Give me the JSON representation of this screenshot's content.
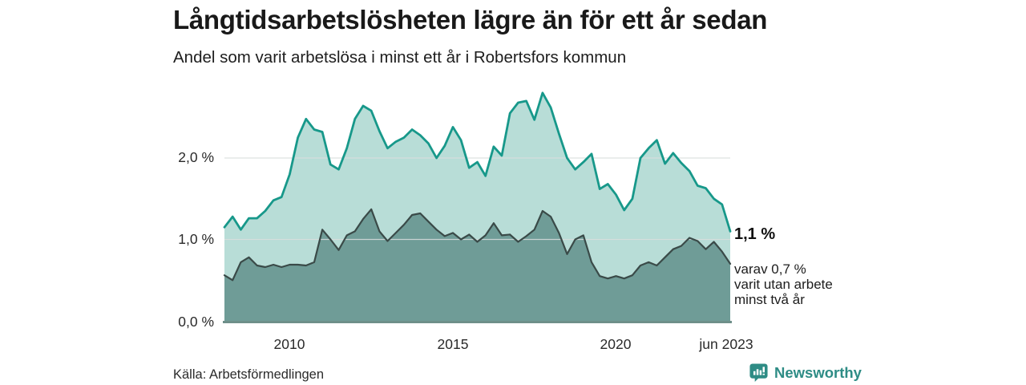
{
  "header": {
    "title": "Långtidsarbetslösheten lägre än för ett år sedan",
    "subtitle": "Andel som varit arbetslösa i minst ett år i Robertsfors kommun"
  },
  "chart_data": {
    "type": "area",
    "title": "Långtidsarbetslösheten lägre än för ett år sedan",
    "subtitle": "Andel som varit arbetslösa i minst ett år i Robertsfors kommun",
    "x_unit": "decimal year (monthly series)",
    "x_range": [
      2008.0,
      2023.5
    ],
    "ylim": [
      0,
      2.9
    ],
    "grid": "horizontal gridlines at 1,0 % and 2,0 % only",
    "legend_position": "none (direct end labels at right)",
    "y_ticks": [
      {
        "label": "0,0 %",
        "value": 0
      },
      {
        "label": "1,0 %",
        "value": 1
      },
      {
        "label": "2,0 %",
        "value": 2
      }
    ],
    "x_ticks": [
      {
        "label": "2010",
        "value": 2010
      },
      {
        "label": "2015",
        "value": 2015
      },
      {
        "label": "2020",
        "value": 2020
      },
      {
        "label": "jun 2023",
        "value": 2023.42
      }
    ],
    "x": [
      2008,
      2008.25,
      2008.5,
      2008.75,
      2009,
      2009.25,
      2009.5,
      2009.75,
      2010,
      2010.25,
      2010.5,
      2010.75,
      2011,
      2011.25,
      2011.5,
      2011.75,
      2012,
      2012.25,
      2012.5,
      2012.75,
      2013,
      2013.25,
      2013.5,
      2013.75,
      2014,
      2014.25,
      2014.5,
      2014.75,
      2015,
      2015.25,
      2015.5,
      2015.75,
      2016,
      2016.25,
      2016.5,
      2016.75,
      2017,
      2017.25,
      2017.5,
      2017.75,
      2018,
      2018.25,
      2018.5,
      2018.75,
      2019,
      2019.25,
      2019.5,
      2019.75,
      2020,
      2020.25,
      2020.5,
      2020.75,
      2021,
      2021.25,
      2021.5,
      2021.75,
      2022,
      2022.25,
      2022.5,
      2022.75,
      2023,
      2023.25,
      2023.5
    ],
    "series": [
      {
        "name": "Andel arbetslösa minst ett år",
        "line": "#17988a",
        "fill": "#b8ddd7",
        "line_width": 2.8,
        "latest_value_pct": 1.1,
        "values": [
          1.15,
          1.28,
          1.12,
          1.26,
          1.26,
          1.35,
          1.48,
          1.52,
          1.8,
          2.25,
          2.48,
          2.35,
          2.32,
          1.92,
          1.86,
          2.12,
          2.48,
          2.64,
          2.58,
          2.33,
          2.12,
          2.2,
          2.25,
          2.35,
          2.28,
          2.18,
          2.0,
          2.15,
          2.38,
          2.22,
          1.88,
          1.95,
          1.78,
          2.14,
          2.03,
          2.55,
          2.68,
          2.7,
          2.47,
          2.8,
          2.62,
          2.3,
          2.0,
          1.86,
          1.95,
          2.05,
          1.62,
          1.68,
          1.55,
          1.36,
          1.5,
          2.0,
          2.12,
          2.22,
          1.93,
          2.06,
          1.94,
          1.84,
          1.66,
          1.63,
          1.5,
          1.43,
          1.1
        ]
      },
      {
        "name": "Andel arbetslösa minst två år",
        "line": "#3a4a48",
        "fill": "#6f9c97",
        "line_width": 2.2,
        "latest_value_pct": 0.7,
        "values": [
          0.56,
          0.5,
          0.72,
          0.78,
          0.68,
          0.66,
          0.69,
          0.66,
          0.69,
          0.69,
          0.68,
          0.72,
          1.12,
          1.0,
          0.87,
          1.05,
          1.1,
          1.25,
          1.37,
          1.1,
          0.98,
          1.08,
          1.18,
          1.3,
          1.32,
          1.22,
          1.12,
          1.04,
          1.08,
          1.0,
          1.06,
          0.97,
          1.05,
          1.2,
          1.05,
          1.06,
          0.97,
          1.04,
          1.12,
          1.35,
          1.28,
          1.08,
          0.82,
          1.0,
          1.05,
          0.72,
          0.55,
          0.52,
          0.55,
          0.52,
          0.56,
          0.68,
          0.72,
          0.68,
          0.78,
          0.88,
          0.92,
          1.02,
          0.98,
          0.88,
          0.97,
          0.85,
          0.7
        ]
      }
    ],
    "annotations": {
      "primary": "1,1 %",
      "secondary": "varav 0,7 %\nvarit utan arbete\nminst två år"
    }
  },
  "colors": {
    "grid": "#d9dedd",
    "baseline": "#6e8f89",
    "brand": "#2e8c85",
    "title_text": "#191919"
  },
  "footer": {
    "source": "Källa: Arbetsförmedlingen",
    "brand": "Newsworthy"
  }
}
